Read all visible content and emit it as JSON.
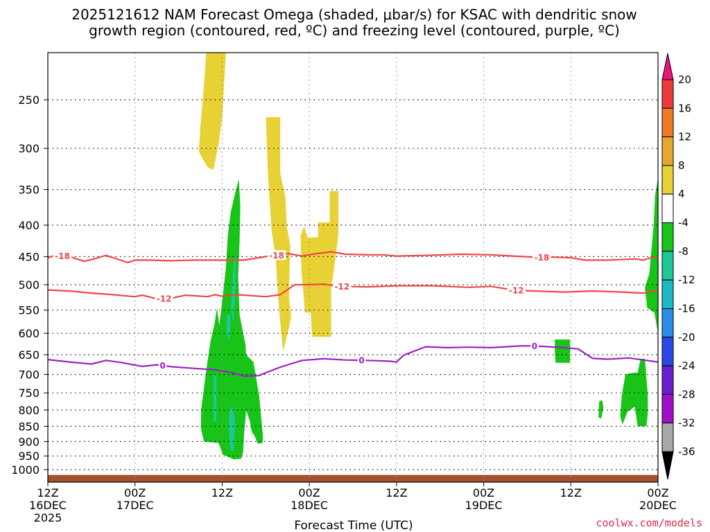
{
  "chart_data": {
    "type": "contour-time-height",
    "title_line1": "2025121612 NAM Forecast Omega (shaded, μbar/s) for KSAC with dendritic snow",
    "title_line2": "growth region (contoured, red, ºC) and freezing level (contoured, purple, ºC)",
    "xlabel": "Forecast Time (UTC)",
    "credit": "coolwx.com/models",
    "x_ticks": [
      {
        "hour": 0,
        "l1": "12Z",
        "l2": "16DEC",
        "l3": "2025"
      },
      {
        "hour": 12,
        "l1": "00Z",
        "l2": "17DEC",
        "l3": ""
      },
      {
        "hour": 24,
        "l1": "12Z",
        "l2": "",
        "l3": ""
      },
      {
        "hour": 36,
        "l1": "00Z",
        "l2": "18DEC",
        "l3": ""
      },
      {
        "hour": 48,
        "l1": "12Z",
        "l2": "",
        "l3": ""
      },
      {
        "hour": 60,
        "l1": "00Z",
        "l2": "19DEC",
        "l3": ""
      },
      {
        "hour": 72,
        "l1": "12Z",
        "l2": "",
        "l3": ""
      },
      {
        "hour": 84,
        "l1": "00Z",
        "l2": "20DEC",
        "l3": ""
      }
    ],
    "x_range_hours": [
      0,
      84
    ],
    "y_range_hpa": [
      1050,
      200
    ],
    "y_ticks_hpa": [
      250,
      300,
      350,
      400,
      450,
      500,
      550,
      600,
      650,
      700,
      750,
      800,
      850,
      900,
      950,
      1000
    ],
    "surface_hpa": 1020,
    "colorbar": {
      "labels": [
        "20",
        "16",
        "12",
        "8",
        "4",
        "-4",
        "-8",
        "-12",
        "-16",
        "-20",
        "-24",
        "-28",
        "-32",
        "-36"
      ],
      "colors": [
        "#e8127f",
        "#ee3a3a",
        "#ee7a28",
        "#e6a730",
        "#e7d135",
        "#ffffff",
        "#18c418",
        "#1dc796",
        "#1bb8c6",
        "#2a8de6",
        "#2b47e6",
        "#6a1fce",
        "#9f11c9",
        "#a8a8a8",
        "#000000"
      ]
    },
    "series": [
      {
        "name": "-18",
        "color": "#f04545",
        "label_at_hours": [
          2.0,
          31.5,
          68.0
        ],
        "points": [
          [
            0,
            452
          ],
          [
            1,
            448
          ],
          [
            3,
            450
          ],
          [
            5,
            458
          ],
          [
            6,
            455
          ],
          [
            8,
            448
          ],
          [
            10,
            456
          ],
          [
            11,
            460
          ],
          [
            12,
            456
          ],
          [
            14,
            456
          ],
          [
            17,
            457
          ],
          [
            20,
            456
          ],
          [
            24,
            456
          ],
          [
            27,
            456
          ],
          [
            30,
            450
          ],
          [
            33,
            445
          ],
          [
            35,
            449
          ],
          [
            37,
            445
          ],
          [
            39,
            442
          ],
          [
            41,
            446
          ],
          [
            44,
            447
          ],
          [
            46,
            447
          ],
          [
            48,
            449
          ],
          [
            52,
            448
          ],
          [
            57,
            446
          ],
          [
            61,
            447
          ],
          [
            64,
            449
          ],
          [
            67,
            451
          ],
          [
            70,
            451
          ],
          [
            72,
            452
          ],
          [
            74,
            456
          ],
          [
            77,
            456
          ],
          [
            81,
            454
          ],
          [
            82,
            456
          ],
          [
            83,
            452
          ],
          [
            84,
            450
          ]
        ]
      },
      {
        "name": "-12",
        "color": "#f04545",
        "label_at_hours": [
          16.0,
          40.5,
          64.5
        ],
        "points": [
          [
            0,
            510
          ],
          [
            3,
            512
          ],
          [
            6,
            516
          ],
          [
            9,
            519
          ],
          [
            12,
            523
          ],
          [
            13,
            520
          ],
          [
            15,
            527
          ],
          [
            17,
            526
          ],
          [
            19,
            520
          ],
          [
            22,
            523
          ],
          [
            23,
            519
          ],
          [
            24,
            522
          ],
          [
            26,
            519
          ],
          [
            28,
            521
          ],
          [
            30,
            523
          ],
          [
            32,
            519
          ],
          [
            34,
            500
          ],
          [
            36,
            500
          ],
          [
            38,
            499
          ],
          [
            40,
            503
          ],
          [
            44,
            504
          ],
          [
            48,
            502
          ],
          [
            53,
            502
          ],
          [
            58,
            505
          ],
          [
            61,
            503
          ],
          [
            64,
            510
          ],
          [
            67,
            512
          ],
          [
            71,
            514
          ],
          [
            75,
            512
          ],
          [
            79,
            514
          ],
          [
            82,
            516
          ],
          [
            84,
            510
          ]
        ]
      },
      {
        "name": "0",
        "color": "#9d20c6",
        "label_at_hours": [
          15.8,
          43.2,
          67.0
        ],
        "points": [
          [
            0,
            662
          ],
          [
            3,
            668
          ],
          [
            6,
            673
          ],
          [
            8,
            664
          ],
          [
            10,
            669
          ],
          [
            13,
            679
          ],
          [
            15,
            675
          ],
          [
            17,
            680
          ],
          [
            20,
            684
          ],
          [
            23,
            688
          ],
          [
            25,
            694
          ],
          [
            27,
            704
          ],
          [
            29,
            703
          ],
          [
            32,
            681
          ],
          [
            35,
            664
          ],
          [
            38,
            660
          ],
          [
            41,
            663
          ],
          [
            44,
            664
          ],
          [
            47,
            666
          ],
          [
            48,
            668
          ],
          [
            49,
            651
          ],
          [
            52,
            631
          ],
          [
            55,
            633
          ],
          [
            58,
            632
          ],
          [
            61,
            633
          ],
          [
            63,
            631
          ],
          [
            65,
            629
          ],
          [
            67,
            629
          ],
          [
            69,
            631
          ],
          [
            71,
            633
          ],
          [
            73,
            636
          ],
          [
            75,
            659
          ],
          [
            77,
            661
          ],
          [
            80,
            658
          ],
          [
            82,
            663
          ],
          [
            84,
            668
          ]
        ]
      }
    ],
    "shaded_regions": [
      {
        "name": "yellow-upper-1",
        "value": 6,
        "color": "#e7d135",
        "points": [
          [
            21.8,
            200
          ],
          [
            24.5,
            200
          ],
          [
            24.0,
            268
          ],
          [
            23.5,
            295
          ],
          [
            22.8,
            325
          ],
          [
            22.0,
            322
          ],
          [
            20.8,
            304
          ],
          [
            21.0,
            276
          ],
          [
            21.5,
            237
          ]
        ]
      },
      {
        "name": "yellow-upper-2",
        "value": 6,
        "color": "#e7d135",
        "points": [
          [
            30.0,
            267
          ],
          [
            32.0,
            267
          ],
          [
            32.0,
            329
          ],
          [
            32.7,
            360
          ],
          [
            32.9,
            403
          ],
          [
            33.4,
            433
          ],
          [
            33.3,
            455
          ],
          [
            33.2,
            525
          ],
          [
            33.5,
            565
          ],
          [
            33.1,
            592
          ],
          [
            32.4,
            642
          ],
          [
            32.2,
            610
          ],
          [
            31.9,
            560
          ],
          [
            31.6,
            505
          ],
          [
            31.4,
            458
          ],
          [
            31.1,
            430
          ],
          [
            30.8,
            408
          ],
          [
            30.3,
            330
          ]
        ]
      },
      {
        "name": "yellow-mid",
        "value": 6,
        "color": "#e7d135",
        "points": [
          [
            34.8,
            415
          ],
          [
            35.3,
            402
          ],
          [
            35.8,
            420
          ],
          [
            37.2,
            418
          ],
          [
            37.2,
            396
          ],
          [
            38.8,
            396
          ],
          [
            38.8,
            352
          ],
          [
            40.0,
            352
          ],
          [
            40.0,
            415
          ],
          [
            39.4,
            470
          ],
          [
            39.0,
            507
          ],
          [
            39.0,
            608
          ],
          [
            36.4,
            608
          ],
          [
            36.2,
            555
          ],
          [
            35.4,
            555
          ],
          [
            34.9,
            470
          ]
        ]
      },
      {
        "name": "green-main",
        "value": -6,
        "color": "#18c418",
        "points": [
          [
            22.9,
            583
          ],
          [
            23.3,
            545
          ],
          [
            23.6,
            583
          ],
          [
            24.1,
            520
          ],
          [
            24.5,
            470
          ],
          [
            24.8,
            413
          ],
          [
            25.2,
            380
          ],
          [
            25.9,
            350
          ],
          [
            26.3,
            337
          ],
          [
            26.5,
            373
          ],
          [
            26.4,
            423
          ],
          [
            26.2,
            485
          ],
          [
            26.4,
            560
          ],
          [
            26.9,
            600
          ],
          [
            27.2,
            625
          ],
          [
            27.3,
            650
          ],
          [
            28.3,
            668
          ],
          [
            28.6,
            700
          ],
          [
            29.1,
            760
          ],
          [
            29.4,
            830
          ],
          [
            29.6,
            878
          ],
          [
            29.6,
            904
          ],
          [
            28.9,
            908
          ],
          [
            28.4,
            878
          ],
          [
            28.1,
            870
          ],
          [
            27.8,
            832
          ],
          [
            27.3,
            800
          ],
          [
            27.0,
            880
          ],
          [
            26.9,
            935
          ],
          [
            26.6,
            960
          ],
          [
            25.6,
            962
          ],
          [
            24.1,
            945
          ],
          [
            23.5,
            905
          ],
          [
            21.5,
            900
          ],
          [
            21.1,
            860
          ],
          [
            21.1,
            800
          ],
          [
            21.8,
            690
          ],
          [
            22.4,
            617
          ]
        ]
      },
      {
        "name": "green-right-upper",
        "value": -6,
        "color": "#18c418",
        "points": [
          [
            83.4,
            400
          ],
          [
            83.6,
            358
          ],
          [
            84.0,
            335
          ],
          [
            84.0,
            600
          ],
          [
            83.5,
            555
          ],
          [
            82.5,
            545
          ],
          [
            82.2,
            505
          ],
          [
            82.8,
            480
          ]
        ]
      },
      {
        "name": "green-right-lower",
        "value": -6,
        "color": "#18c418",
        "points": [
          [
            79.5,
            700
          ],
          [
            80.4,
            696
          ],
          [
            81.2,
            695
          ],
          [
            81.6,
            660
          ],
          [
            82.2,
            660
          ],
          [
            82.6,
            755
          ],
          [
            82.6,
            810
          ],
          [
            82.4,
            850
          ],
          [
            81.2,
            850
          ],
          [
            80.8,
            790
          ],
          [
            79.8,
            805
          ],
          [
            79.1,
            845
          ],
          [
            78.8,
            818
          ],
          [
            79.0,
            760
          ]
        ]
      },
      {
        "name": "green-small-1",
        "value": -6,
        "color": "#18c418",
        "points": [
          [
            69.8,
            614
          ],
          [
            71.9,
            614
          ],
          [
            71.9,
            670
          ],
          [
            69.9,
            670
          ],
          [
            69.8,
            642
          ]
        ]
      },
      {
        "name": "green-small-2",
        "value": -6,
        "color": "#18c418",
        "points": [
          [
            75.9,
            775
          ],
          [
            76.3,
            770
          ],
          [
            76.5,
            792
          ],
          [
            76.2,
            825
          ],
          [
            75.8,
            822
          ]
        ]
      },
      {
        "name": "teal-1",
        "value": -10,
        "color": "#1dc796",
        "points": [
          [
            25.6,
            458
          ],
          [
            25.9,
            450
          ],
          [
            25.8,
            520
          ],
          [
            25.5,
            580
          ],
          [
            25.2,
            542
          ]
        ]
      },
      {
        "name": "teal-2",
        "value": -10,
        "color": "#1dc796",
        "points": [
          [
            24.6,
            560
          ],
          [
            25.2,
            560
          ],
          [
            25.0,
            620
          ],
          [
            24.6,
            600
          ]
        ]
      },
      {
        "name": "teal-3",
        "value": -10,
        "color": "#1dc796",
        "points": [
          [
            22.8,
            700
          ],
          [
            23.2,
            700
          ],
          [
            23.2,
            835
          ],
          [
            22.8,
            835
          ]
        ]
      },
      {
        "name": "teal-4",
        "value": -10,
        "color": "#1dc796",
        "points": [
          [
            25.0,
            800
          ],
          [
            25.5,
            790
          ],
          [
            25.8,
            840
          ],
          [
            25.6,
            930
          ],
          [
            25.1,
            930
          ],
          [
            24.9,
            860
          ]
        ]
      }
    ]
  }
}
